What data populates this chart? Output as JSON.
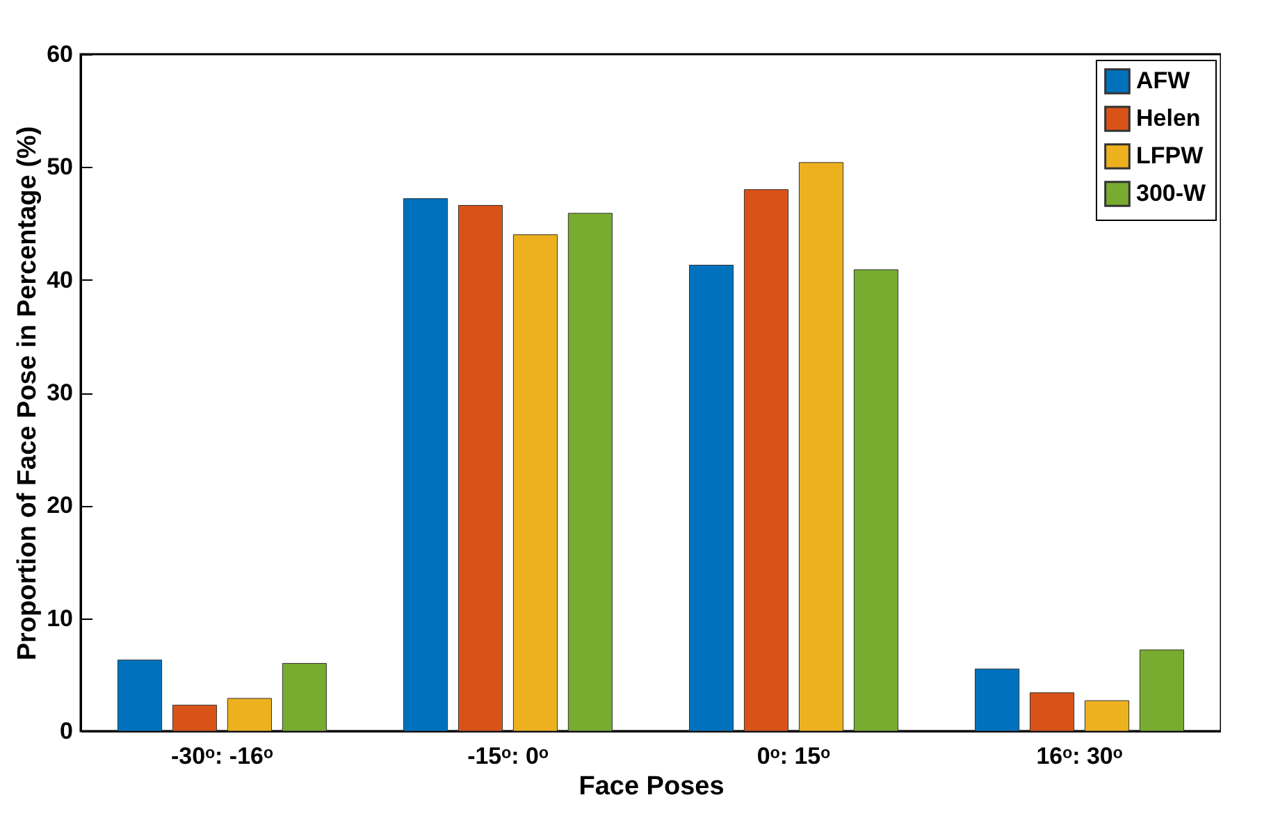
{
  "chart_data": {
    "type": "bar",
    "xlabel": "Face Poses",
    "ylabel": "Proportion of Face Pose in Percentage (%)",
    "categories": [
      "-30ᵒ: -16ᵒ",
      "-15ᵒ: 0ᵒ",
      "0ᵒ: 15ᵒ",
      "16ᵒ: 30ᵒ"
    ],
    "series": [
      {
        "name": "AFW",
        "color": "#0072bd",
        "values": [
          6.3,
          47.2,
          41.3,
          5.5
        ]
      },
      {
        "name": "Helen",
        "color": "#d95319",
        "values": [
          2.3,
          46.6,
          48.0,
          3.4
        ]
      },
      {
        "name": "LFPW",
        "color": "#edb120",
        "values": [
          2.9,
          44.0,
          50.4,
          2.7
        ]
      },
      {
        "name": "300-W",
        "color": "#77ac30",
        "values": [
          6.0,
          45.9,
          40.9,
          7.2
        ]
      }
    ],
    "ylim": [
      0,
      60
    ],
    "yticks": [
      0,
      10,
      20,
      30,
      40,
      50,
      60
    ],
    "grid": false,
    "legend": "top right"
  }
}
